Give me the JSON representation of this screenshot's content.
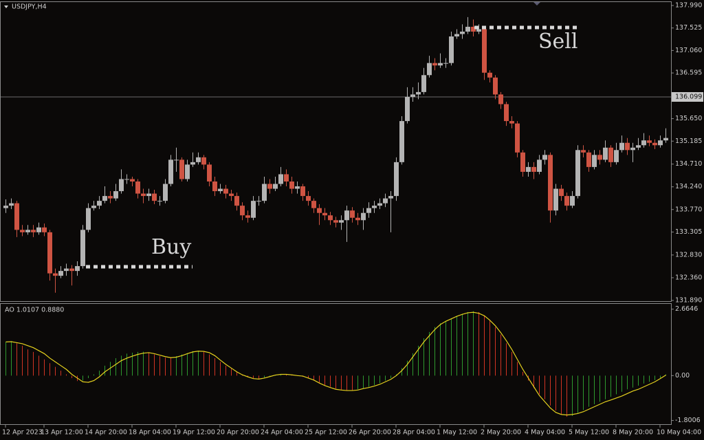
{
  "chart_data": [
    {
      "type": "candlestick",
      "title": "USDJPY,H4",
      "categories": [
        "12 Apr 2023",
        null,
        null,
        null,
        null,
        null,
        null,
        "13 Apr 12:00",
        null,
        null,
        null,
        null,
        null,
        null,
        null,
        "14 Apr 20:00",
        null,
        null,
        null,
        null,
        null,
        null,
        null,
        "18 Apr 04:00",
        null,
        null,
        null,
        null,
        null,
        null,
        null,
        "19 Apr 12:00",
        null,
        null,
        null,
        null,
        null,
        null,
        null,
        "20 Apr 20:00",
        null,
        null,
        null,
        null,
        null,
        null,
        null,
        "24 Apr 04:00",
        null,
        null,
        null,
        null,
        null,
        null,
        null,
        "25 Apr 12:00",
        null,
        null,
        null,
        null,
        null,
        null,
        null,
        "26 Apr 20:00",
        null,
        null,
        null,
        null,
        null,
        null,
        null,
        "28 Apr 04:00",
        null,
        null,
        null,
        null,
        null,
        null,
        null,
        "1 May 12:00",
        null,
        null,
        null,
        null,
        null,
        null,
        null,
        "2 May 20:00",
        null,
        null,
        null,
        null,
        null,
        null,
        null,
        "4 May 04:00",
        null,
        null,
        null,
        null,
        null,
        null,
        null,
        "5 May 12:00",
        null,
        null,
        null,
        null,
        null,
        null,
        null,
        "8 May 20:00",
        null,
        null,
        null,
        null,
        null,
        null,
        null,
        "10 May 04:00",
        null
      ],
      "open": [
        133.8,
        133.85,
        133.9,
        133.35,
        133.3,
        133.35,
        133.3,
        133.4,
        133.3,
        132.45,
        132.4,
        132.5,
        132.55,
        132.5,
        132.6,
        133.35,
        133.8,
        133.85,
        133.95,
        134.05,
        134.0,
        134.15,
        134.4,
        134.4,
        134.35,
        134.1,
        134.05,
        134.1,
        133.95,
        133.95,
        134.3,
        134.8,
        134.8,
        134.4,
        134.7,
        134.75,
        134.85,
        134.7,
        134.35,
        134.15,
        134.2,
        134.1,
        134.05,
        133.85,
        133.65,
        133.6,
        133.95,
        133.95,
        134.3,
        134.2,
        134.3,
        134.5,
        134.35,
        134.2,
        134.25,
        134.05,
        133.95,
        133.8,
        133.7,
        133.65,
        133.55,
        133.5,
        133.55,
        133.75,
        133.6,
        133.55,
        133.7,
        133.8,
        133.85,
        133.9,
        134.0,
        134.05,
        134.75,
        135.6,
        136.1,
        136.15,
        136.2,
        136.55,
        136.8,
        136.75,
        136.8,
        136.8,
        137.35,
        137.4,
        137.45,
        137.55,
        137.45,
        137.5,
        136.6,
        136.5,
        136.15,
        135.95,
        135.6,
        135.55,
        134.95,
        134.55,
        134.65,
        134.55,
        134.8,
        134.9,
        133.75,
        134.2,
        134.05,
        133.85,
        134.05,
        135.0,
        134.95,
        134.65,
        134.9,
        134.8,
        135.05,
        134.75,
        135.0,
        135.15,
        135.0,
        135.05,
        135.1,
        135.2,
        135.15,
        135.1,
        135.2
      ],
      "high": [
        133.98,
        134.0,
        133.95,
        133.45,
        133.45,
        133.45,
        133.5,
        133.48,
        133.35,
        132.55,
        132.6,
        132.65,
        132.62,
        132.7,
        133.45,
        133.9,
        133.95,
        134.05,
        134.25,
        134.15,
        134.3,
        134.6,
        134.5,
        134.45,
        134.4,
        134.2,
        134.2,
        134.18,
        134.05,
        134.4,
        134.9,
        135.05,
        134.85,
        134.8,
        134.95,
        134.95,
        134.9,
        134.75,
        134.45,
        134.3,
        134.28,
        134.18,
        134.12,
        133.92,
        133.75,
        134.05,
        134.05,
        134.45,
        134.4,
        134.45,
        134.65,
        134.6,
        134.45,
        134.35,
        134.3,
        134.15,
        134.0,
        133.88,
        133.8,
        133.72,
        133.62,
        133.65,
        133.85,
        133.82,
        133.7,
        133.8,
        133.92,
        133.95,
        134.0,
        134.1,
        134.15,
        134.85,
        135.7,
        136.3,
        136.3,
        136.4,
        136.7,
        136.95,
        136.9,
        137.0,
        136.9,
        137.45,
        137.5,
        137.6,
        137.75,
        137.7,
        137.6,
        137.55,
        136.65,
        136.55,
        136.2,
        136.0,
        135.7,
        135.6,
        135.0,
        134.75,
        134.75,
        134.9,
        135.0,
        134.95,
        134.3,
        134.28,
        134.12,
        134.15,
        135.1,
        135.1,
        135.0,
        135.0,
        135.0,
        135.2,
        135.1,
        135.15,
        135.3,
        135.25,
        135.15,
        135.25,
        135.35,
        135.3,
        135.22,
        135.3,
        135.45
      ],
      "low": [
        133.7,
        133.78,
        133.2,
        133.22,
        133.25,
        133.2,
        133.25,
        133.22,
        132.3,
        132.05,
        132.35,
        132.4,
        132.2,
        132.4,
        132.55,
        133.3,
        133.75,
        133.78,
        133.9,
        133.9,
        133.95,
        134.1,
        134.3,
        134.25,
        134.0,
        133.9,
        133.95,
        133.88,
        133.85,
        133.9,
        134.25,
        134.55,
        134.35,
        134.35,
        134.65,
        134.7,
        134.6,
        134.25,
        134.05,
        134.1,
        134.0,
        133.95,
        133.75,
        133.55,
        133.5,
        133.55,
        133.85,
        133.9,
        134.1,
        134.15,
        134.25,
        134.25,
        134.1,
        134.1,
        133.95,
        133.85,
        133.7,
        133.45,
        133.55,
        133.45,
        133.4,
        133.35,
        133.1,
        133.5,
        133.45,
        133.35,
        133.6,
        133.7,
        133.78,
        133.82,
        133.3,
        133.95,
        134.7,
        135.55,
        136.0,
        136.05,
        136.15,
        136.5,
        136.65,
        136.7,
        136.7,
        136.75,
        137.3,
        137.3,
        137.4,
        137.35,
        137.4,
        136.45,
        136.4,
        136.05,
        135.85,
        135.5,
        135.45,
        134.85,
        134.45,
        134.45,
        134.4,
        134.5,
        134.7,
        133.5,
        133.65,
        133.95,
        133.75,
        133.8,
        134.0,
        134.85,
        134.55,
        134.6,
        134.7,
        134.75,
        134.65,
        134.7,
        134.95,
        134.9,
        134.75,
        135.0,
        135.05,
        135.08,
        135.02,
        135.05,
        135.15
      ],
      "close": [
        133.85,
        133.9,
        133.35,
        133.3,
        133.35,
        133.3,
        133.4,
        133.3,
        132.45,
        132.4,
        132.5,
        132.55,
        132.5,
        132.6,
        133.35,
        133.8,
        133.85,
        133.95,
        134.05,
        134.0,
        134.15,
        134.4,
        134.4,
        134.35,
        134.1,
        134.05,
        134.1,
        133.95,
        133.95,
        134.3,
        134.8,
        134.8,
        134.4,
        134.7,
        134.75,
        134.85,
        134.7,
        134.35,
        134.15,
        134.2,
        134.1,
        134.05,
        133.85,
        133.65,
        133.6,
        133.95,
        133.95,
        134.3,
        134.2,
        134.3,
        134.5,
        134.35,
        134.2,
        134.25,
        134.05,
        133.95,
        133.8,
        133.7,
        133.65,
        133.55,
        133.5,
        133.55,
        133.75,
        133.6,
        133.55,
        133.7,
        133.8,
        133.85,
        133.9,
        134.0,
        134.05,
        134.75,
        135.6,
        136.1,
        136.15,
        136.2,
        136.55,
        136.8,
        136.75,
        136.8,
        136.8,
        137.35,
        137.4,
        137.45,
        137.55,
        137.45,
        137.5,
        136.6,
        136.5,
        136.15,
        135.95,
        135.6,
        135.55,
        134.95,
        134.55,
        134.65,
        134.55,
        134.8,
        134.9,
        133.75,
        134.2,
        134.05,
        133.85,
        134.05,
        135.0,
        134.95,
        134.65,
        134.9,
        134.8,
        135.05,
        134.75,
        135.0,
        135.15,
        135.0,
        135.05,
        135.1,
        135.2,
        135.15,
        135.1,
        135.2,
        135.25
      ],
      "up_color": "#b4b4b4",
      "down_color": "#cf5443",
      "ylim": [
        131.89,
        137.99
      ],
      "yticks": [
        {
          "value": 137.99,
          "label": "137.990"
        },
        137.525,
        {
          "value": 137.06,
          "label": "137.060"
        },
        136.595,
        {
          "value": 135.65,
          "label": "135.650"
        },
        135.185,
        {
          "value": 134.71,
          "label": "134.710"
        },
        {
          "value": 134.24,
          "label": "134.240"
        },
        {
          "value": 133.77,
          "label": "133.770"
        },
        133.305,
        {
          "value": 132.83,
          "label": "132.830"
        },
        {
          "value": 132.36,
          "label": "132.360"
        },
        {
          "value": 131.89,
          "label": "131.890"
        }
      ],
      "current_price": 136.099,
      "annotations": [
        "Buy",
        "Sell"
      ]
    },
    {
      "type": "bar",
      "title": "AO 1.0107 0.8880",
      "series": [
        {
          "type": "bar",
          "up_color": "#2f9a2f",
          "down_color": "#d23424",
          "values": [
            1.35,
            1.38,
            1.3,
            1.2,
            1.05,
            0.95,
            0.8,
            0.65,
            0.5,
            0.35,
            0.2,
            0.05,
            -0.1,
            -0.22,
            -0.2,
            -0.1,
            0.05,
            0.2,
            0.4,
            0.55,
            0.7,
            0.8,
            0.88,
            0.92,
            0.95,
            0.96,
            0.92,
            0.85,
            0.78,
            0.72,
            0.72,
            0.78,
            0.85,
            0.9,
            0.98,
            1.0,
            0.95,
            0.85,
            0.7,
            0.55,
            0.4,
            0.28,
            0.15,
            0.05,
            -0.05,
            -0.1,
            -0.12,
            -0.08,
            -0.02,
            0.03,
            0.05,
            0.05,
            0.02,
            -0.02,
            -0.05,
            -0.1,
            -0.2,
            -0.3,
            -0.38,
            -0.45,
            -0.52,
            -0.56,
            -0.58,
            -0.58,
            -0.55,
            -0.5,
            -0.45,
            -0.38,
            -0.3,
            -0.2,
            -0.1,
            0.05,
            0.3,
            0.6,
            0.9,
            1.2,
            1.5,
            1.75,
            1.95,
            2.1,
            2.2,
            2.3,
            2.4,
            2.48,
            2.55,
            2.58,
            2.55,
            2.4,
            2.2,
            1.95,
            1.65,
            1.3,
            0.95,
            0.55,
            0.15,
            -0.2,
            -0.5,
            -0.75,
            -0.95,
            -1.2,
            -1.4,
            -1.55,
            -1.65,
            -1.62,
            -1.5,
            -1.38,
            -1.25,
            -1.15,
            -1.05,
            -0.95,
            -0.85,
            -0.75,
            -0.65,
            -0.55,
            -0.48,
            -0.4,
            -0.32,
            -0.25,
            -0.18,
            -0.1,
            0.05
          ]
        },
        {
          "type": "line",
          "color": "#e6d21e",
          "values": [
            1.35,
            1.36,
            1.32,
            1.28,
            1.2,
            1.12,
            1.0,
            0.88,
            0.7,
            0.55,
            0.4,
            0.25,
            0.05,
            -0.1,
            -0.25,
            -0.27,
            -0.2,
            -0.05,
            0.15,
            0.3,
            0.45,
            0.6,
            0.7,
            0.78,
            0.85,
            0.9,
            0.92,
            0.88,
            0.82,
            0.76,
            0.72,
            0.74,
            0.8,
            0.88,
            0.95,
            0.98,
            0.97,
            0.92,
            0.8,
            0.62,
            0.45,
            0.3,
            0.15,
            0.03,
            -0.05,
            -0.12,
            -0.14,
            -0.1,
            -0.04,
            0.02,
            0.05,
            0.05,
            0.03,
            0,
            -0.02,
            -0.1,
            -0.18,
            -0.3,
            -0.4,
            -0.48,
            -0.55,
            -0.58,
            -0.6,
            -0.6,
            -0.58,
            -0.52,
            -0.48,
            -0.42,
            -0.35,
            -0.25,
            -0.15,
            0,
            0.2,
            0.45,
            0.75,
            1.05,
            1.35,
            1.6,
            1.85,
            2.05,
            2.18,
            2.28,
            2.38,
            2.46,
            2.52,
            2.54,
            2.5,
            2.4,
            2.22,
            2.0,
            1.72,
            1.4,
            1.05,
            0.65,
            0.25,
            -0.1,
            -0.45,
            -0.8,
            -1.05,
            -1.3,
            -1.48,
            -1.56,
            -1.58,
            -1.56,
            -1.52,
            -1.45,
            -1.35,
            -1.25,
            -1.15,
            -1.05,
            -0.98,
            -0.9,
            -0.82,
            -0.72,
            -0.62,
            -0.55,
            -0.45,
            -0.35,
            -0.25,
            -0.12,
            0.02
          ]
        }
      ],
      "ylim": [
        -1.95,
        2.85
      ],
      "yticks": [
        2.6646,
        {
          "value": 0,
          "label": "0.00"
        },
        -1.8006
      ]
    }
  ]
}
